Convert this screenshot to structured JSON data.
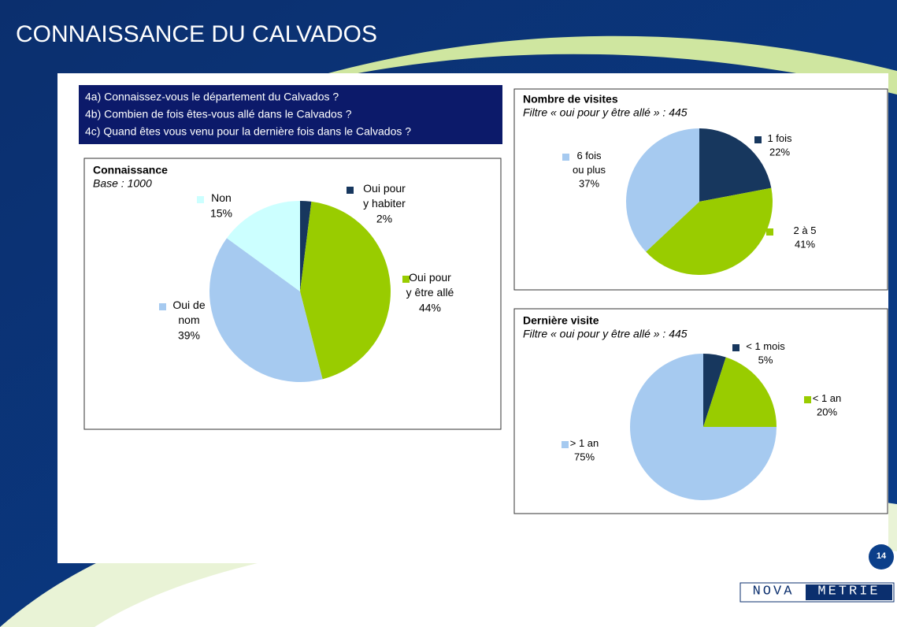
{
  "slide_title": "CONNAISSANCE DU CALVADOS",
  "questions": [
    "4a) Connaissez-vous le département du Calvados ?",
    "4b) Combien de fois êtes-vous allé dans le Calvados ?",
    "4c) Quand êtes vous venu pour la dernière fois dans le Calvados ?"
  ],
  "page_number": "14",
  "logo": {
    "part1": "NOVA",
    "part2": "METRIE"
  },
  "chart_data": [
    {
      "type": "pie",
      "title": "Connaissance",
      "subtitle": "Base : 1000",
      "categories": [
        "Oui pour y habiter",
        "Oui pour y être allé",
        "Oui de nom",
        "Non"
      ],
      "values": [
        2,
        44,
        39,
        15
      ],
      "value_labels": [
        "2%",
        "44%",
        "39%",
        "15%"
      ],
      "colors": [
        "#17375e",
        "#99cc00",
        "#a6caf0",
        "#ccffff"
      ]
    },
    {
      "type": "pie",
      "title": "Nombre de visites",
      "subtitle": "Filtre « oui pour y être allé » : 445",
      "categories": [
        "1 fois",
        "2 à 5 fois",
        "6 fois ou plus"
      ],
      "values": [
        22,
        41,
        37
      ],
      "value_labels": [
        "22%",
        "41%",
        "37%"
      ],
      "colors": [
        "#17375e",
        "#99cc00",
        "#a6caf0"
      ]
    },
    {
      "type": "pie",
      "title": "Dernière visite",
      "subtitle": "Filtre « oui pour y être allé » : 445",
      "categories": [
        "< 1 mois",
        "< 1 an",
        "> 1 an"
      ],
      "values": [
        5,
        20,
        75
      ],
      "value_labels": [
        "5%",
        "20%",
        "75%"
      ],
      "colors": [
        "#17375e",
        "#99cc00",
        "#a6caf0"
      ]
    }
  ]
}
